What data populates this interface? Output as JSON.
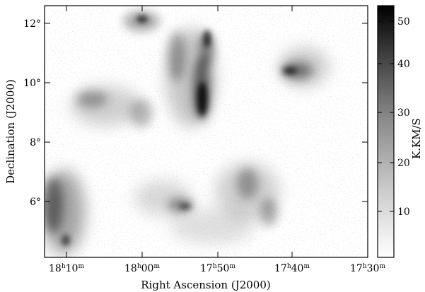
{
  "x_axis": {
    "label": "Right Ascension (J2000)",
    "ticks": [
      {
        "h": "18",
        "m": "10"
      },
      {
        "h": "18",
        "m": "00"
      },
      {
        "h": "17",
        "m": "50"
      },
      {
        "h": "17",
        "m": "40"
      },
      {
        "h": "17",
        "m": "30"
      }
    ]
  },
  "y_axis": {
    "label": "Declination (J2000)",
    "ticks": [
      "12°",
      "10°",
      "8°",
      "6°"
    ]
  },
  "colorbar": {
    "label": "K.KM/S",
    "ticks": [
      "50",
      "40",
      "30",
      "20",
      "10"
    ],
    "colors": {
      "low": "#ffffff",
      "high": "#000000"
    }
  }
}
